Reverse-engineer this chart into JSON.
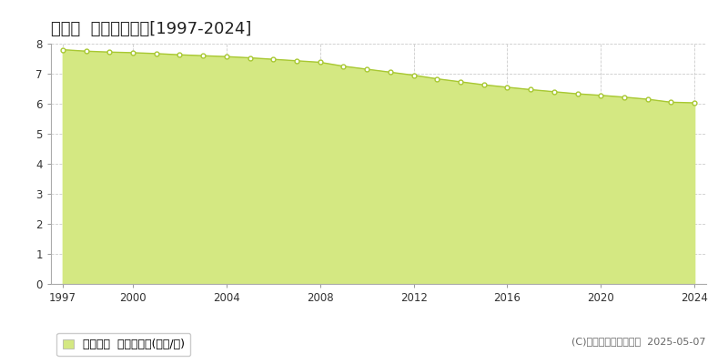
{
  "title": "国富町  基準地価推移[1997-2024]",
  "years": [
    1997,
    1998,
    1999,
    2000,
    2001,
    2002,
    2003,
    2004,
    2005,
    2006,
    2007,
    2008,
    2009,
    2010,
    2011,
    2012,
    2013,
    2014,
    2015,
    2016,
    2017,
    2018,
    2019,
    2020,
    2021,
    2022,
    2023,
    2024
  ],
  "values": [
    7.8,
    7.75,
    7.72,
    7.7,
    7.67,
    7.63,
    7.6,
    7.57,
    7.53,
    7.48,
    7.43,
    7.38,
    7.25,
    7.15,
    7.05,
    6.95,
    6.83,
    6.73,
    6.63,
    6.55,
    6.47,
    6.4,
    6.33,
    6.28,
    6.22,
    6.15,
    6.05,
    6.03
  ],
  "line_color": "#a8c832",
  "fill_color": "#d4e882",
  "marker_facecolor": "#ffffff",
  "marker_edgecolor": "#a8c832",
  "background_color": "#ffffff",
  "plot_bg_color": "#ffffff",
  "grid_color": "#cccccc",
  "ylim": [
    0,
    8
  ],
  "yticks": [
    0,
    1,
    2,
    3,
    4,
    5,
    6,
    7,
    8
  ],
  "xtick_years": [
    1997,
    2000,
    2004,
    2008,
    2012,
    2016,
    2020,
    2024
  ],
  "legend_label": "基準地価  平均坪単価(万円/坪)",
  "copyright_text": "(C)土地価格ドットコム  2025-05-07",
  "title_fontsize": 13,
  "tick_fontsize": 8.5,
  "legend_fontsize": 9,
  "copyright_fontsize": 8
}
